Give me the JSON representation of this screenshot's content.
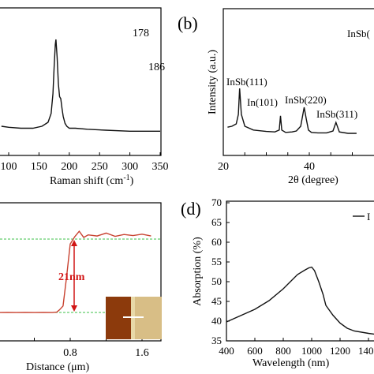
{
  "panels": {
    "a": {
      "xlabel": "Raman shift (cm",
      "xlabel_sup": "-1",
      "xlabel_end": ")",
      "xticks": [
        "100",
        "150",
        "200",
        "250",
        "300",
        "350"
      ],
      "peak_labels": [
        "178",
        "186"
      ]
    },
    "b": {
      "panel_label": "(b)",
      "ylabel": "Intensity (a.u.)",
      "xlabel": "2θ (degree)",
      "xticks": [
        "20",
        "40"
      ],
      "peak_labels": [
        "InSb(111)",
        "In(101)",
        "InSb(220)",
        "InSb(311)",
        "InSb("
      ]
    },
    "c": {
      "xlabel": "Distance (μm)",
      "xticks": [
        "0.8",
        "1.6"
      ],
      "annotation": "21nm"
    },
    "d": {
      "panel_label": "(d)",
      "ylabel": "Absorption (%)",
      "xlabel": "Wavelength (nm)",
      "yticks": [
        "35",
        "40",
        "45",
        "50",
        "55",
        "60",
        "65",
        "70"
      ],
      "xticks": [
        "400",
        "600",
        "800",
        "1000",
        "1200",
        "1400"
      ],
      "legend_label": "I"
    }
  },
  "chart_data": [
    {
      "type": "line",
      "title": "",
      "xlabel": "Raman shift (cm-1)",
      "ylabel": "",
      "xlim": [
        88,
        350
      ],
      "series": [
        {
          "x": [
            88,
            100,
            120,
            140,
            155,
            165,
            170,
            173,
            175,
            177,
            178,
            180,
            182,
            184,
            186,
            188,
            190,
            193,
            196,
            200,
            210,
            230,
            260,
            300,
            350
          ],
          "y": [
            0.12,
            0.11,
            0.1,
            0.1,
            0.12,
            0.16,
            0.25,
            0.45,
            0.72,
            0.95,
            1.0,
            0.82,
            0.55,
            0.42,
            0.4,
            0.3,
            0.22,
            0.15,
            0.12,
            0.1,
            0.1,
            0.09,
            0.08,
            0.07,
            0.07
          ]
        }
      ],
      "annotations": [
        "178",
        "186"
      ]
    },
    {
      "type": "line",
      "title": "",
      "xlabel": "2θ (degree)",
      "ylabel": "Intensity (a.u.)",
      "xlim": [
        20,
        51
      ],
      "series": [
        {
          "x": [
            21,
            22,
            23,
            23.5,
            23.8,
            24.2,
            25,
            27,
            30,
            32,
            33,
            33.3,
            33.6,
            34.5,
            36,
            37,
            38,
            38.8,
            39.3,
            39.8,
            40.5,
            42,
            44,
            45.5,
            46.2,
            47,
            49,
            51
          ],
          "y": [
            0.18,
            0.2,
            0.25,
            0.45,
            1.0,
            0.45,
            0.2,
            0.12,
            0.09,
            0.08,
            0.12,
            0.42,
            0.12,
            0.07,
            0.08,
            0.1,
            0.2,
            0.6,
            0.35,
            0.12,
            0.07,
            0.06,
            0.06,
            0.1,
            0.28,
            0.08,
            0.05,
            0.05
          ]
        }
      ],
      "annotations": [
        "InSb(111)",
        "In(101)",
        "InSb(220)",
        "InSb(311)"
      ]
    },
    {
      "type": "line",
      "title": "",
      "xlabel": "Distance (μm)",
      "ylabel": "",
      "xlim": [
        0,
        1.7
      ],
      "series": [
        {
          "x": [
            0,
            0.1,
            0.2,
            0.3,
            0.4,
            0.5,
            0.6,
            0.65,
            0.68,
            0.72,
            0.76,
            0.8,
            0.85,
            0.9,
            0.95,
            1.0,
            1.1,
            1.2,
            1.3,
            1.4,
            1.5,
            1.6,
            1.7
          ],
          "y": [
            0.2,
            0.22,
            0.19,
            0.21,
            0.2,
            0.23,
            0.2,
            0.3,
            0.9,
            2.0,
            10.0,
            19.0,
            21.0,
            22.5,
            20.8,
            21.5,
            21.2,
            22.0,
            21.1,
            21.6,
            21.3,
            21.7,
            21.2
          ]
        }
      ],
      "annotations": [
        "21nm"
      ]
    },
    {
      "type": "line",
      "title": "",
      "xlabel": "Wavelength (nm)",
      "ylabel": "Absorption (%)",
      "xlim": [
        400,
        1580
      ],
      "ylim": [
        35,
        70
      ],
      "series": [
        {
          "x": [
            400,
            450,
            500,
            600,
            700,
            800,
            850,
            900,
            950,
            980,
            1000,
            1020,
            1050,
            1080,
            1100,
            1150,
            1200,
            1250,
            1300,
            1400,
            1500,
            1580
          ],
          "y": [
            39.8,
            40.6,
            41.4,
            43.0,
            45.2,
            48.2,
            50.0,
            51.8,
            52.9,
            53.5,
            53.7,
            52.8,
            50.0,
            46.8,
            44.0,
            41.5,
            39.5,
            38.2,
            37.5,
            36.9,
            36.4,
            36.1
          ]
        }
      ]
    }
  ]
}
